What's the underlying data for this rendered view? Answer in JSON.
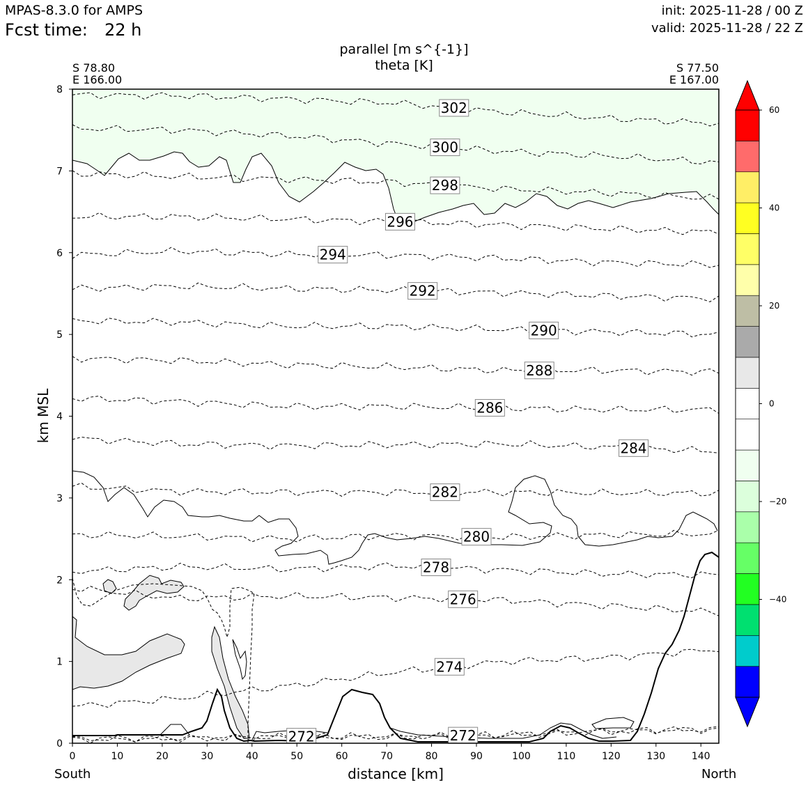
{
  "header": {
    "model": "MPAS-8.3.0 for AMPS",
    "fcst_label": "Fcst time:",
    "fcst_value": "22 h",
    "init": "init: 2025-11-28 / 00 Z",
    "valid": "valid: 2025-11-28 / 22 Z"
  },
  "chart_data": {
    "type": "cross-section contour",
    "title": "parallel [m s^{-1}]",
    "subtitle": "theta [K]",
    "xlabel": "distance [km]",
    "ylabel": "km MSL",
    "xlim": [
      0,
      144
    ],
    "ylim": [
      0,
      8
    ],
    "x_ticks": [
      0,
      10,
      20,
      30,
      40,
      50,
      60,
      70,
      80,
      90,
      100,
      110,
      120,
      130,
      140
    ],
    "y_ticks": [
      0,
      1,
      2,
      3,
      4,
      5,
      6,
      7,
      8
    ],
    "left_end": {
      "lat": "S 78.80",
      "lon": "E 166.00",
      "direction": "South"
    },
    "right_end": {
      "lat": "S 77.50",
      "lon": "E 167.00",
      "direction": "North"
    },
    "theta_contours": [
      {
        "level": 302,
        "label_x": 85,
        "y": [
          7.93,
          7.92,
          7.88,
          7.83,
          7.72,
          7.64,
          7.58
        ]
      },
      {
        "level": 300,
        "label_x": 83,
        "y": [
          7.52,
          7.5,
          7.43,
          7.33,
          7.24,
          7.18,
          7.1
        ]
      },
      {
        "level": 298,
        "label_x": 83,
        "y": [
          6.97,
          6.93,
          6.9,
          6.86,
          6.78,
          6.73,
          6.66
        ]
      },
      {
        "level": 296,
        "label_x": 73,
        "y": [
          6.44,
          6.44,
          6.41,
          6.38,
          6.34,
          6.29,
          6.25
        ]
      },
      {
        "level": 294,
        "label_x": 58,
        "y": [
          5.97,
          6.02,
          5.98,
          5.97,
          5.93,
          5.88,
          5.85
        ]
      },
      {
        "level": 292,
        "label_x": 78,
        "y": [
          5.56,
          5.59,
          5.56,
          5.54,
          5.51,
          5.47,
          5.44
        ]
      },
      {
        "level": 290,
        "label_x": 105,
        "y": [
          5.17,
          5.15,
          5.1,
          5.1,
          5.06,
          5.03,
          5.0
        ]
      },
      {
        "level": 288,
        "label_x": 104,
        "y": [
          4.71,
          4.68,
          4.63,
          4.6,
          4.56,
          4.56,
          4.54
        ]
      },
      {
        "level": 286,
        "label_x": 93,
        "y": [
          4.22,
          4.18,
          4.12,
          4.12,
          4.1,
          4.08,
          4.08
        ]
      },
      {
        "level": 284,
        "label_x": 125,
        "y": [
          3.73,
          3.66,
          3.64,
          3.65,
          3.66,
          3.62,
          3.57
        ]
      },
      {
        "level": 282,
        "label_x": 83,
        "y": [
          3.14,
          3.08,
          3.07,
          3.07,
          3.07,
          3.06,
          3.06
        ]
      },
      {
        "level": 280,
        "label_x": 90,
        "y": [
          2.55,
          2.53,
          2.5,
          2.54,
          2.52,
          2.55,
          2.56
        ]
      },
      {
        "level": 278,
        "label_x": 81,
        "y": [
          2.1,
          2.16,
          2.13,
          2.17,
          2.12,
          2.07,
          2.06
        ]
      },
      {
        "level": 276,
        "label_x": 87,
        "y": [
          1.9,
          1.77,
          1.8,
          1.78,
          1.75,
          1.68,
          1.6
        ]
      },
      {
        "level": 274,
        "label_x": 84,
        "y": [
          0.45,
          0.55,
          0.7,
          0.87,
          1.0,
          1.05,
          1.15
        ]
      },
      {
        "level": 272,
        "label_x": 51,
        "y": [
          0.05,
          0.06,
          0.08,
          0.08,
          0.1,
          0.15,
          0.17
        ]
      },
      {
        "level": 272,
        "label_x": 87,
        "y": [
          0.05,
          0.06,
          0.08,
          0.08,
          0.1,
          0.15,
          0.17
        ]
      }
    ],
    "colorbar": {
      "ticks": [
        60,
        40,
        20,
        0,
        -20,
        -40
      ],
      "min": -60,
      "max": 60,
      "step": 6,
      "colors": [
        "#0000ff",
        "#00cccc",
        "#00e070",
        "#22ff22",
        "#66ff66",
        "#aaffaa",
        "#dcffdc",
        "#f0fff0",
        "#ffffff",
        "#ffffff",
        "#e8e8e8",
        "#aaaaaa",
        "#bebea5",
        "#ffffaa",
        "#ffff66",
        "#ffff22",
        "#ffee66",
        "#ff6b6b",
        "#ff0000"
      ],
      "under_color": "#0000ff",
      "over_color": "#ff0000"
    },
    "shading": {
      "upper_region": "#f0fff0",
      "lower_patches": "#e8e8e8"
    }
  }
}
